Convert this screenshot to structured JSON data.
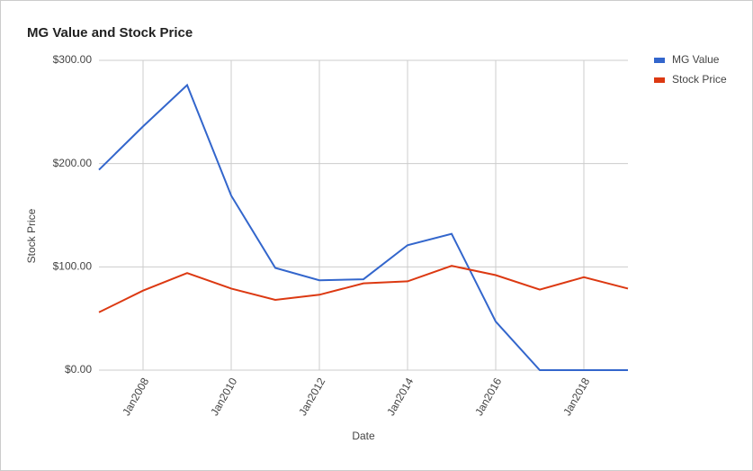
{
  "chart_data": {
    "type": "line",
    "title": "MG Value and Stock Price",
    "x_label": "Date",
    "y_label": "Stock Price",
    "x": [
      2007,
      2008,
      2009,
      2010,
      2011,
      2012,
      2013,
      2014,
      2015,
      2016,
      2017,
      2018,
      2019
    ],
    "series": [
      {
        "name": "MG Value",
        "color": "#3366cc",
        "values": [
          194,
          236,
          276,
          169,
          99,
          87,
          88,
          121,
          132,
          47,
          0,
          0,
          0
        ]
      },
      {
        "name": "Stock Price",
        "color": "#dc3912",
        "values": [
          56,
          77,
          94,
          79,
          68,
          73,
          84,
          86,
          101,
          92,
          78,
          90,
          79
        ]
      }
    ],
    "xlim": [
      2007,
      2019
    ],
    "xticks": [
      {
        "value": 2008,
        "label": "Jan2008"
      },
      {
        "value": 2010,
        "label": "Jan2010"
      },
      {
        "value": 2012,
        "label": "Jan2012"
      },
      {
        "value": 2014,
        "label": "Jan2014"
      },
      {
        "value": 2016,
        "label": "Jan2016"
      },
      {
        "value": 2018,
        "label": "Jan2018"
      }
    ],
    "ylim": [
      0,
      300
    ],
    "yticks": [
      {
        "value": 0,
        "label": "$0.00"
      },
      {
        "value": 100,
        "label": "$100.00"
      },
      {
        "value": 200,
        "label": "$200.00"
      },
      {
        "value": 300,
        "label": "$300.00"
      }
    ],
    "grid": true,
    "legend": "right"
  }
}
